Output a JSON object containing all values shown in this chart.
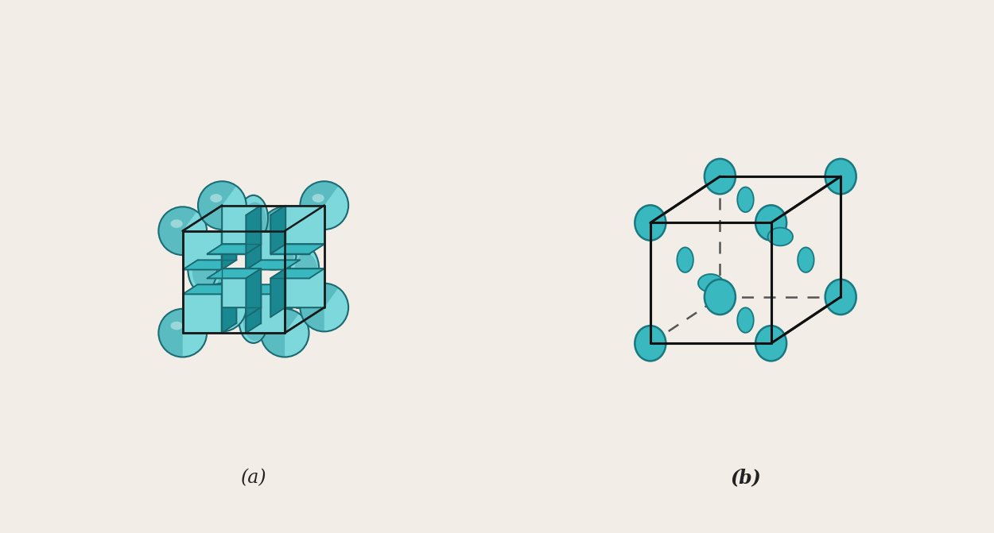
{
  "background_color": "#f2ede6",
  "teal_light": "#7dd8dc",
  "teal_mid": "#3ab8c0",
  "teal_dark": "#1a8890",
  "teal_edge": "#1a6870",
  "white_bg": "#f0f0f0",
  "atom_color": "#3ab8c0",
  "atom_edge": "#1a7880",
  "label_a": "(a)",
  "label_b": "(b)",
  "label_fontsize": 15
}
